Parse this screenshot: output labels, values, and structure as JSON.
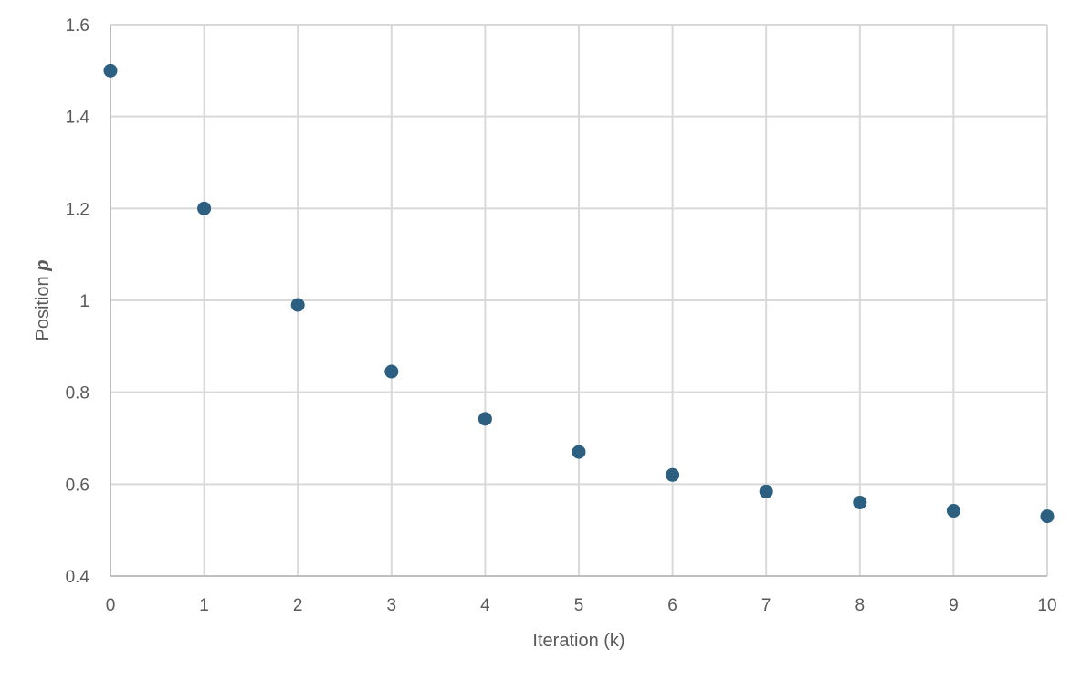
{
  "chart_data": {
    "type": "scatter",
    "title": "",
    "xlabel": "Iteration (k)",
    "ylabel": "Position p",
    "ylabel_parts": {
      "text": "Position ",
      "var": "p"
    },
    "x": [
      0,
      1,
      2,
      3,
      4,
      5,
      6,
      7,
      8,
      9,
      10
    ],
    "series": [
      {
        "name": "Position p",
        "color": "#2c5f80",
        "values": [
          1.5,
          1.2,
          0.99,
          0.845,
          0.742,
          0.67,
          0.62,
          0.584,
          0.56,
          0.542,
          0.53
        ]
      }
    ],
    "xlim": [
      0,
      10
    ],
    "ylim": [
      0.4,
      1.6
    ],
    "xticks": [
      "0",
      "1",
      "2",
      "3",
      "4",
      "5",
      "6",
      "7",
      "8",
      "9",
      "10"
    ],
    "yticks": [
      "0.4",
      "0.6",
      "0.8",
      "1",
      "1.2",
      "1.4",
      "1.6"
    ],
    "ytick_values": [
      0.4,
      0.6,
      0.8,
      1.0,
      1.2,
      1.4,
      1.6
    ],
    "grid": true,
    "legend": "none"
  }
}
